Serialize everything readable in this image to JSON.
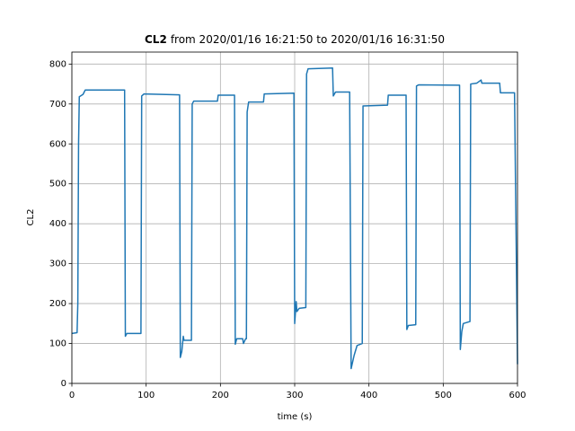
{
  "chart_data": {
    "type": "line",
    "title_bold": "CL2",
    "title": "from 2020/01/16 16:21:50 to 2020/01/16 16:31:50",
    "xlabel": "time (s)",
    "ylabel": "CL2",
    "xlim": [
      0,
      600
    ],
    "ylim": [
      0,
      830
    ],
    "xticks": [
      0,
      100,
      200,
      300,
      400,
      500,
      600
    ],
    "yticks": [
      0,
      100,
      200,
      300,
      400,
      500,
      600,
      700,
      800
    ],
    "grid": true,
    "series": [
      {
        "name": "CL2",
        "color": "#1f77b4",
        "x": [
          0,
          7,
          8,
          9,
          10,
          15,
          18,
          71,
          72,
          74,
          93,
          94,
          97,
          145,
          146,
          148,
          150,
          151,
          161,
          162,
          164,
          196,
          197,
          219,
          220,
          222,
          230,
          231,
          234,
          235,
          236,
          238,
          258,
          259,
          299,
          300,
          302,
          303,
          306,
          315,
          316,
          318,
          351,
          352,
          355,
          374,
          376,
          380,
          384,
          391,
          392,
          425,
          426,
          450,
          451,
          453,
          463,
          464,
          467,
          522,
          523,
          525,
          527,
          536,
          537,
          545,
          551,
          552,
          576,
          577,
          596,
          600
        ],
        "values": [
          125,
          127,
          200,
          600,
          718,
          724,
          735,
          735,
          118,
          125,
          125,
          720,
          725,
          723,
          65,
          80,
          118,
          108,
          108,
          700,
          707,
          707,
          722,
          722,
          98,
          112,
          112,
          100,
          112,
          112,
          680,
          705,
          705,
          725,
          727,
          150,
          205,
          180,
          188,
          190,
          775,
          788,
          790,
          720,
          730,
          730,
          37,
          70,
          95,
          100,
          695,
          697,
          722,
          722,
          135,
          145,
          147,
          745,
          748,
          747,
          85,
          130,
          150,
          155,
          750,
          752,
          760,
          752,
          752,
          728,
          728,
          48
        ]
      }
    ]
  }
}
